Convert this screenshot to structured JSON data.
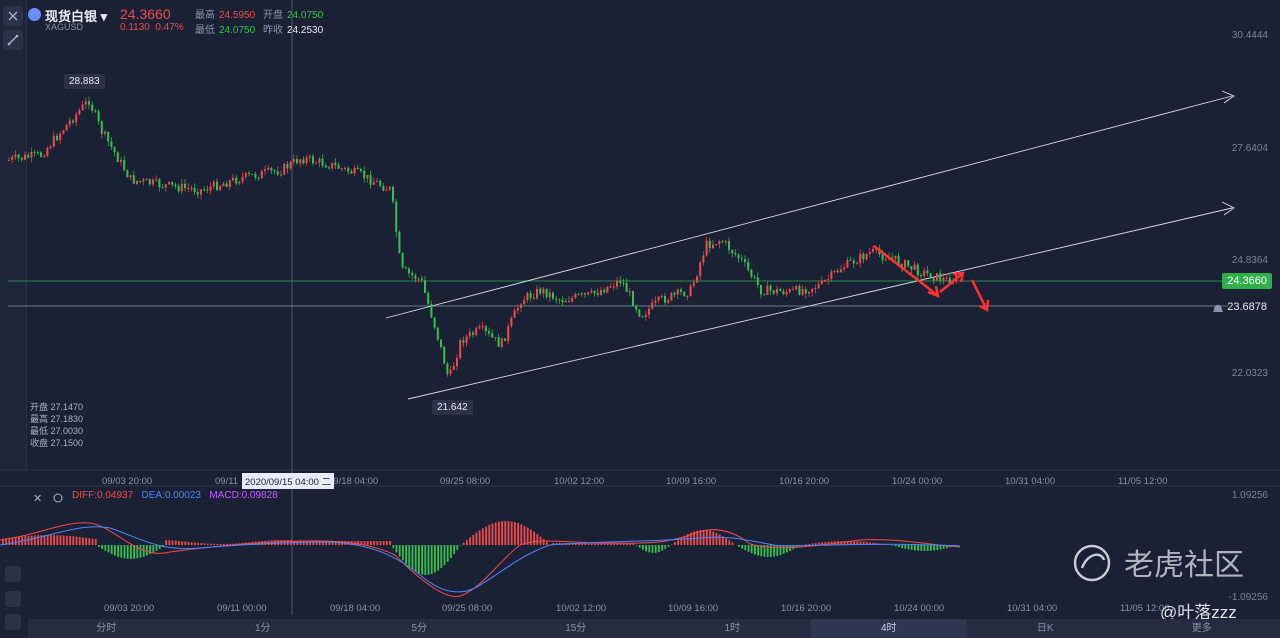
{
  "header": {
    "name": "现货白银",
    "code": "XAGUSD",
    "price": "24.3660",
    "change": "0.1130",
    "change_pct": "0.47%",
    "high_label": "最高",
    "high": "24.5950",
    "open_label": "开盘",
    "open": "24.0750",
    "low_label": "最低",
    "low": "24.0750",
    "prev_label": "昨收",
    "prev": "24.2530"
  },
  "y_axis": [
    "30.4444",
    "27.6404",
    "24.8364",
    "22.0323"
  ],
  "current_price_tag": "24.3660",
  "alert_price_tag": "23.6878",
  "markers": {
    "high": "28.883",
    "low": "21.642"
  },
  "ohlc": {
    "open": "开盘 27.1470",
    "high": "最高 27.1830",
    "low": "最低 27.0030",
    "close": "收盘 27.1500"
  },
  "x_axis": [
    "09/03 20:00",
    "09/11",
    "09/18 04:00",
    "09/25 08:00",
    "10/02 12:00",
    "10/09 16:00",
    "10/16 20:00",
    "10/24 00:00",
    "10/31 04:00",
    "11/05 12:00"
  ],
  "x_axis_lower": [
    "09/03 20:00",
    "09/11 00:00",
    "09/18 04:00",
    "09/25 08:00",
    "10/02 12:00",
    "10/09 16:00",
    "10/16 20:00",
    "10/24 00:00",
    "10/31 04:00",
    "11/05 12:00"
  ],
  "crosshair_time": "2020/09/15 04:00 二",
  "macd": {
    "diff": "DIFF:0.04937",
    "dea": "DEA:0.00023",
    "macd": "MACD:0.09828",
    "top": "1.09256",
    "bottom": "-1.09256"
  },
  "timeframes": [
    "分时",
    "1分",
    "5分",
    "15分",
    "1时",
    "4时",
    "日K",
    "更多"
  ],
  "active_timeframe": "4时",
  "watermark": "老虎社区",
  "watermark_user": "@叶落zzz",
  "colors": {
    "up": "#f04b4b",
    "down": "#33c24d",
    "bg": "#1b2134"
  }
}
